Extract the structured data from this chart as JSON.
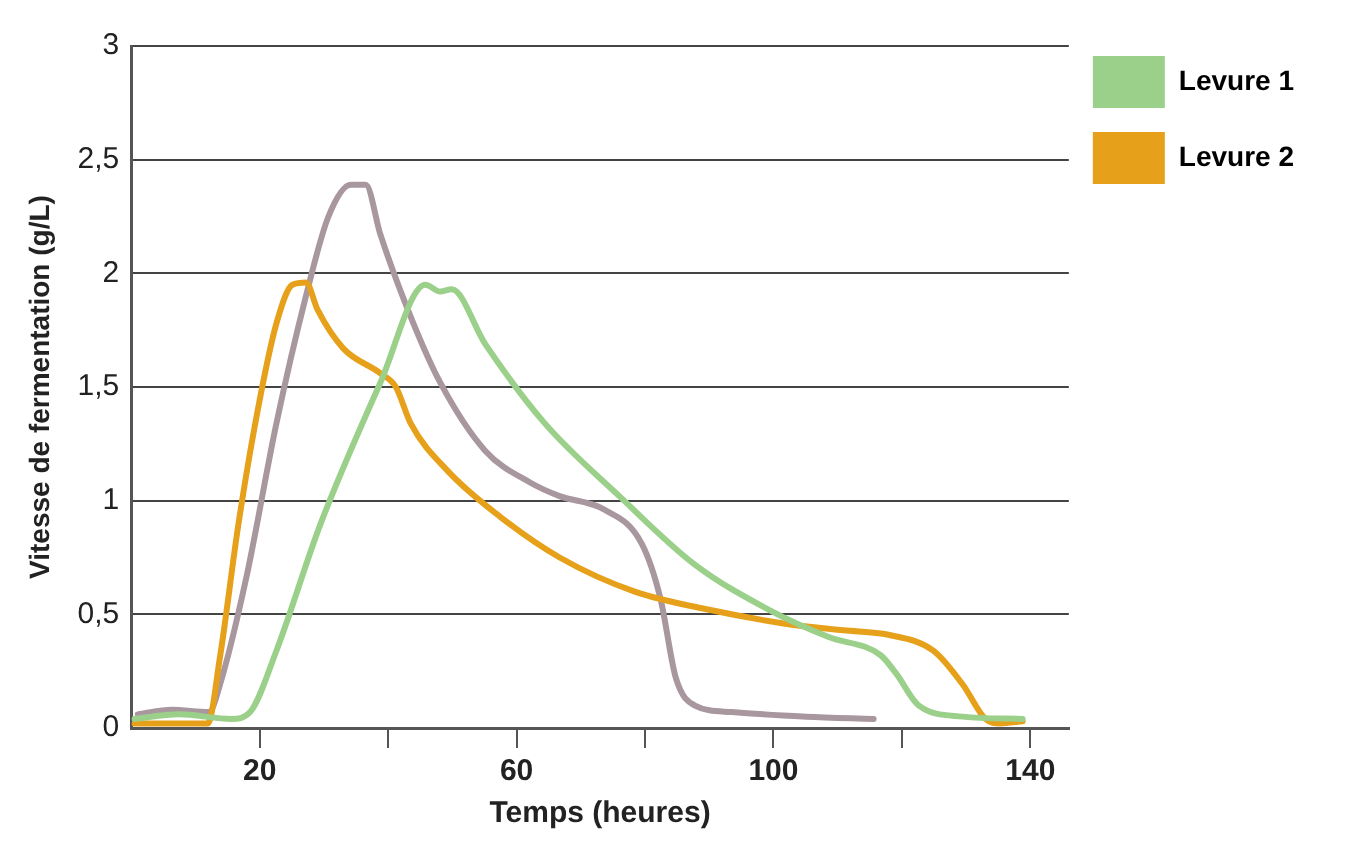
{
  "chart_data": {
    "type": "line",
    "xlabel": "Temps (heures)",
    "ylabel": "Vitesse de fermentation (g/L)",
    "xlim": [
      0,
      146
    ],
    "ylim": [
      0,
      3
    ],
    "xticks": [
      {
        "value": 20,
        "label": "20"
      },
      {
        "value": 40,
        "label": null
      },
      {
        "value": 60,
        "label": "60"
      },
      {
        "value": 80,
        "label": null
      },
      {
        "value": 100,
        "label": "100"
      },
      {
        "value": 120,
        "label": null
      },
      {
        "value": 140,
        "label": "140"
      }
    ],
    "yticks": [
      0,
      {
        "value": 0.5,
        "label": "0,5"
      },
      1,
      {
        "value": 1.5,
        "label": "1,5"
      },
      2,
      {
        "value": 2.5,
        "label": "2,5"
      },
      3
    ],
    "grid": "y",
    "legend": "top right",
    "marker": "none",
    "line_style": "solid",
    "series": [
      {
        "name": "Levure 1",
        "color": "#9bd08a",
        "x": [
          0.5,
          7.4,
          15.6,
          18.5,
          22.6,
          29.5,
          38.8,
          45.8,
          48.1,
          49.9,
          55.1,
          64.4,
          76,
          87.7,
          99.3,
          108.6,
          116.7,
          119.1,
          122.6,
          129.5,
          138.8
        ],
        "values": [
          0.04,
          0.06,
          0.04,
          0.07,
          0.34,
          0.9,
          1.52,
          1.95,
          1.92,
          1.93,
          1.69,
          1.34,
          1.02,
          0.72,
          0.52,
          0.4,
          0.32,
          0.24,
          0.1,
          0.05,
          0.04
        ]
      },
      {
        "name": "Levure 2",
        "color": "#e6a019",
        "x": [
          0.5,
          11.9,
          13.8,
          16.7,
          19.7,
          22.6,
          25.1,
          27.2,
          29,
          33,
          38.8,
          41.2,
          43.5,
          49.3,
          57.4,
          66.7,
          78.4,
          90,
          101.6,
          110.9,
          117.9,
          124.9,
          129.5,
          133,
          135.3,
          138.8
        ],
        "values": [
          0.02,
          0.02,
          0.31,
          0.9,
          1.4,
          1.78,
          1.95,
          1.96,
          1.84,
          1.67,
          1.56,
          1.5,
          1.34,
          1.13,
          0.93,
          0.75,
          0.6,
          0.52,
          0.46,
          0.43,
          0.41,
          0.34,
          0.19,
          0.04,
          0.02,
          0.03
        ]
      },
      {
        "color": "#a8979f",
        "x": [
          1,
          6.3,
          12.1,
          13.8,
          17.9,
          22.6,
          27.2,
          30.7,
          34.2,
          36.5,
          38.8,
          43.5,
          48.1,
          55.1,
          62.1,
          66.7,
          73.7,
          79.5,
          82.4,
          84.8,
          87.7,
          93.5,
          105.1,
          115.6
        ],
        "values": [
          0.06,
          0.08,
          0.07,
          0.19,
          0.66,
          1.34,
          1.9,
          2.25,
          2.39,
          2.39,
          2.17,
          1.81,
          1.52,
          1.22,
          1.08,
          1.02,
          0.96,
          0.81,
          0.57,
          0.22,
          0.1,
          0.07,
          0.05,
          0.04
        ]
      }
    ]
  }
}
